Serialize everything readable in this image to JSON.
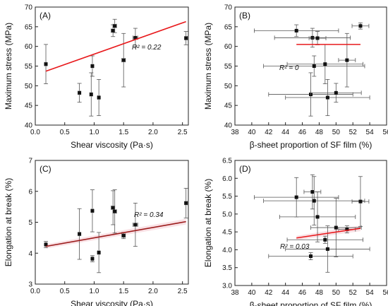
{
  "chart_data": [
    {
      "panel": "(A)",
      "type": "scatter",
      "xlabel": "Shear viscosity (Pa·s)",
      "ylabel": "Maximum stress (MPa)",
      "xlim": [
        0.0,
        2.6
      ],
      "ylim": [
        40,
        70
      ],
      "xticks": [
        0.0,
        0.5,
        1.0,
        1.5,
        2.0,
        2.5
      ],
      "yticks": [
        40,
        45,
        50,
        55,
        60,
        65,
        70
      ],
      "x_tick_labels": [
        "0.0",
        "0.5",
        "1.0",
        "1.5",
        "2.0",
        "2.5"
      ],
      "y_tick_labels": [
        "40",
        "45",
        "50",
        "55",
        "60",
        "65",
        "70"
      ],
      "annotation": "R² = 0.22",
      "fit_line": {
        "x": [
          0.18,
          2.56
        ],
        "y": [
          53.7,
          66.3
        ],
        "color": "#e8191c"
      },
      "points": [
        {
          "x": 0.18,
          "y": 55.5,
          "yerr": 5.0,
          "xerr": 0.02
        },
        {
          "x": 0.75,
          "y": 48.2,
          "yerr": 2.4,
          "xerr": 0.02
        },
        {
          "x": 0.95,
          "y": 47.8,
          "yerr": 5.5,
          "xerr": 0.02
        },
        {
          "x": 0.97,
          "y": 55.0,
          "yerr": 2.6,
          "xerr": 0.02
        },
        {
          "x": 1.08,
          "y": 47.0,
          "yerr": 4.6,
          "xerr": 0.02
        },
        {
          "x": 1.32,
          "y": 64.0,
          "yerr": 1.5,
          "xerr": 0.03
        },
        {
          "x": 1.35,
          "y": 65.2,
          "yerr": 1.7,
          "xerr": 0.03
        },
        {
          "x": 1.5,
          "y": 56.5,
          "yerr": 6.8,
          "xerr": 0.03
        },
        {
          "x": 1.7,
          "y": 62.2,
          "yerr": 2.4,
          "xerr": 0.04
        },
        {
          "x": 2.56,
          "y": 62.1,
          "yerr": 1.7,
          "xerr": 0.02
        }
      ]
    },
    {
      "panel": "(B)",
      "type": "scatter",
      "xlabel": "β-sheet proportion of SF film (%)",
      "ylabel": "Maximum stress (MPa)",
      "xlim": [
        38,
        56
      ],
      "ylim": [
        40,
        70
      ],
      "xticks": [
        38,
        40,
        42,
        44,
        46,
        48,
        50,
        52,
        54,
        56
      ],
      "yticks": [
        40,
        45,
        50,
        55,
        60,
        65,
        70
      ],
      "x_tick_labels": [
        "38",
        "40",
        "42",
        "44",
        "46",
        "48",
        "50",
        "52",
        "54",
        "56"
      ],
      "y_tick_labels": [
        "40",
        "45",
        "50",
        "55",
        "60",
        "65",
        "70"
      ],
      "annotation": "R² = 0",
      "fit_line": {
        "x": [
          45.3,
          52.9
        ],
        "y": [
          60.5,
          60.5
        ],
        "color": "#e8191c"
      },
      "points": [
        {
          "x": 45.3,
          "y": 64.0,
          "xerr": 5.0,
          "yerr": 1.5
        },
        {
          "x": 47.0,
          "y": 47.8,
          "xerr": 5.0,
          "yerr": 5.5
        },
        {
          "x": 47.2,
          "y": 62.2,
          "xerr": 4.5,
          "yerr": 2.4
        },
        {
          "x": 47.4,
          "y": 55.0,
          "xerr": 6.0,
          "yerr": 2.6
        },
        {
          "x": 47.8,
          "y": 62.1,
          "xerr": 1.0,
          "yerr": 1.7
        },
        {
          "x": 48.7,
          "y": 55.5,
          "xerr": 4.5,
          "yerr": 5.0
        },
        {
          "x": 49.0,
          "y": 47.0,
          "xerr": 5.0,
          "yerr": 4.6
        },
        {
          "x": 50.0,
          "y": 48.2,
          "xerr": 3.0,
          "yerr": 2.4
        },
        {
          "x": 51.3,
          "y": 56.5,
          "xerr": 1.0,
          "yerr": 6.8
        },
        {
          "x": 52.9,
          "y": 65.2,
          "xerr": 1.0,
          "yerr": 0.8
        }
      ]
    },
    {
      "panel": "(C)",
      "type": "scatter",
      "xlabel": "Shear viscosity (Pa·s)",
      "ylabel": "Elongation at break (%)",
      "xlim": [
        0.0,
        2.6
      ],
      "ylim": [
        3,
        7
      ],
      "xticks": [
        0.0,
        0.5,
        1.0,
        1.5,
        2.0,
        2.5
      ],
      "yticks": [
        3,
        4,
        5,
        6,
        7
      ],
      "x_tick_labels": [
        "0.0",
        "0.5",
        "1.0",
        "1.5",
        "2.0",
        "2.5"
      ],
      "y_tick_labels": [
        "3",
        "4",
        "5",
        "6",
        "7"
      ],
      "annotation": "R² = 0.34",
      "fit_line": {
        "x": [
          0.18,
          2.56
        ],
        "y": [
          4.22,
          5.02
        ],
        "color": "#9b1b1b"
      },
      "points": [
        {
          "x": 0.18,
          "y": 4.28,
          "yerr": 0.1,
          "xerr": 0.02
        },
        {
          "x": 0.75,
          "y": 4.62,
          "yerr": 0.82,
          "xerr": 0.02
        },
        {
          "x": 0.97,
          "y": 5.37,
          "yerr": 0.68,
          "xerr": 0.02
        },
        {
          "x": 0.97,
          "y": 3.82,
          "yerr": 0.1,
          "xerr": 0.02
        },
        {
          "x": 1.08,
          "y": 4.02,
          "yerr": 0.65,
          "xerr": 0.02
        },
        {
          "x": 1.32,
          "y": 5.47,
          "yerr": 0.55,
          "xerr": 0.03
        },
        {
          "x": 1.35,
          "y": 5.35,
          "yerr": 0.7,
          "xerr": 0.03
        },
        {
          "x": 1.5,
          "y": 4.57,
          "yerr": 0.1,
          "xerr": 0.03
        },
        {
          "x": 1.7,
          "y": 4.92,
          "yerr": 0.7,
          "xerr": 0.04
        },
        {
          "x": 2.56,
          "y": 5.62,
          "yerr": 0.48,
          "xerr": 0.02
        }
      ]
    },
    {
      "panel": "(D)",
      "type": "scatter",
      "xlabel": "β-sheet proportion of SF film (%)",
      "ylabel": "Elongation at break (%)",
      "xlim": [
        38,
        56
      ],
      "ylim": [
        3.0,
        6.5
      ],
      "xticks": [
        38,
        40,
        42,
        44,
        46,
        48,
        50,
        52,
        54,
        56
      ],
      "yticks": [
        3.0,
        3.5,
        4.0,
        4.5,
        5.0,
        5.5,
        6.0,
        6.5
      ],
      "x_tick_labels": [
        "38",
        "40",
        "42",
        "44",
        "46",
        "48",
        "50",
        "52",
        "54",
        "56"
      ],
      "y_tick_labels": [
        "3.0",
        "3.5",
        "4.0",
        "4.5",
        "5.0",
        "5.5",
        "6.0",
        "6.5"
      ],
      "annotation": "R² = 0.03",
      "fit_line": {
        "x": [
          45.3,
          52.9
        ],
        "y": [
          4.33,
          4.6
        ],
        "color": "#e8191c"
      },
      "points": [
        {
          "x": 45.3,
          "y": 5.47,
          "xerr": 5.0,
          "yerr": 0.55
        },
        {
          "x": 47.0,
          "y": 3.82,
          "xerr": 5.0,
          "yerr": 0.1
        },
        {
          "x": 47.2,
          "y": 5.62,
          "xerr": 1.0,
          "yerr": 0.48
        },
        {
          "x": 47.4,
          "y": 5.37,
          "xerr": 6.0,
          "yerr": 0.68
        },
        {
          "x": 47.8,
          "y": 4.92,
          "xerr": 4.5,
          "yerr": 0.7
        },
        {
          "x": 48.7,
          "y": 4.28,
          "xerr": 4.5,
          "yerr": 0.1
        },
        {
          "x": 49.0,
          "y": 4.02,
          "xerr": 5.0,
          "yerr": 0.65
        },
        {
          "x": 50.0,
          "y": 4.62,
          "xerr": 3.0,
          "yerr": 0.82
        },
        {
          "x": 51.3,
          "y": 4.57,
          "xerr": 1.0,
          "yerr": 0.1
        },
        {
          "x": 52.9,
          "y": 5.35,
          "xerr": 1.0,
          "yerr": 0.7
        }
      ]
    }
  ]
}
